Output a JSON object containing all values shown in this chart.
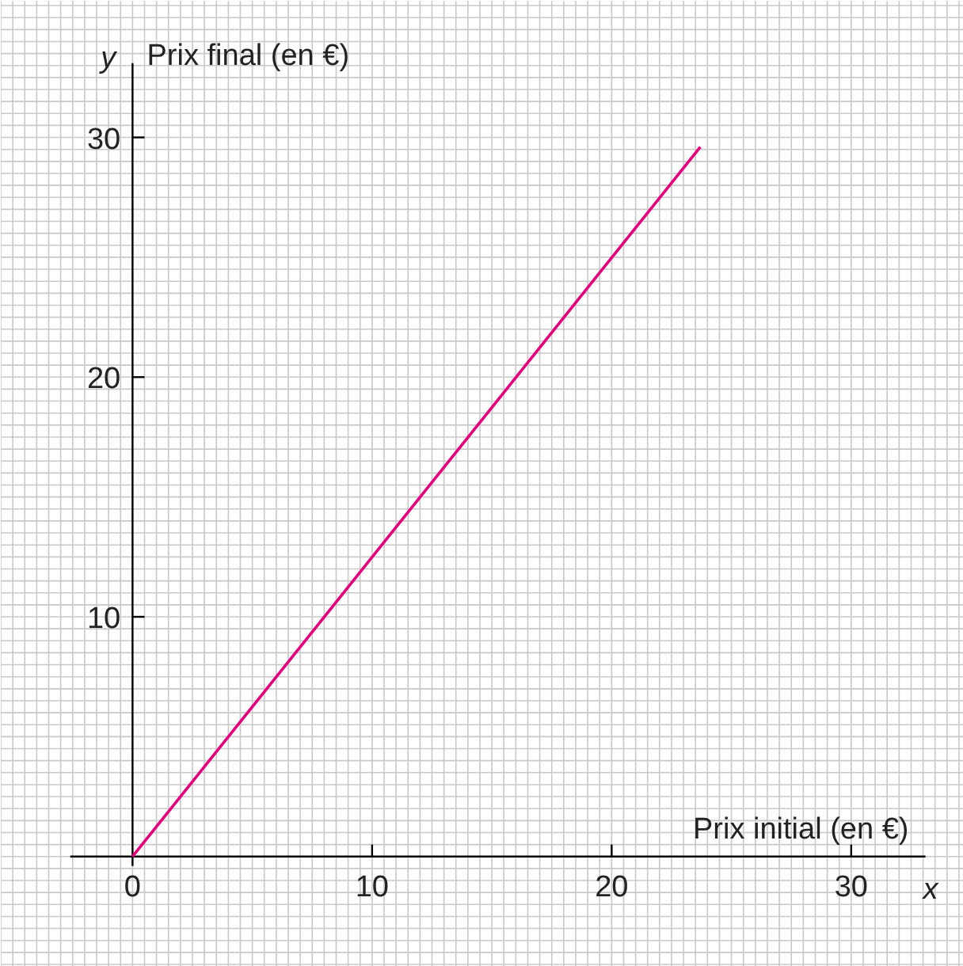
{
  "chart_data": {
    "type": "line",
    "xlabel": "Prix initial (en €)",
    "ylabel": "Prix final (en €)",
    "x": [
      0,
      23.7
    ],
    "series": [
      {
        "color": "#e6007e",
        "values": [
          0,
          29.6
        ]
      }
    ],
    "xlim": [
      -5.5,
      34.7
    ],
    "ylim": [
      -4.6,
      35.7
    ],
    "xticks": [
      0,
      10,
      20,
      30
    ],
    "yticks": [
      {
        "value": 0,
        "label": null
      },
      10,
      20,
      30
    ],
    "annotations": [
      "x",
      "y"
    ],
    "grid": true,
    "marker": "none",
    "line_style": "solid"
  }
}
